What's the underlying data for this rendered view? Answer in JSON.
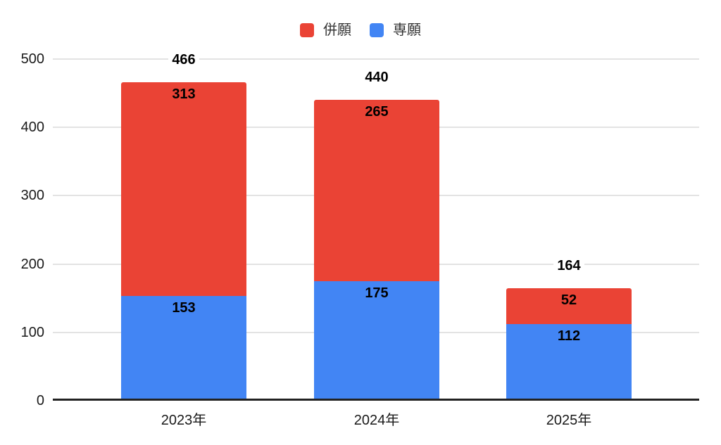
{
  "chart_data": {
    "type": "bar",
    "stacked": true,
    "title": "",
    "xlabel": "",
    "ylabel": "",
    "categories": [
      "2023年",
      "2024年",
      "2025年"
    ],
    "series": [
      {
        "name": "併願",
        "color": "#EA4335",
        "values": [
          313,
          265,
          52
        ]
      },
      {
        "name": "専願",
        "color": "#4285F4",
        "values": [
          153,
          175,
          112
        ]
      }
    ],
    "totals": [
      466,
      440,
      164
    ],
    "stack_bottom_to_top": [
      "専願",
      "併願"
    ],
    "y_axis": {
      "min": 0,
      "max": 500,
      "ticks": [
        0,
        100,
        200,
        300,
        400,
        500
      ]
    },
    "grid": true,
    "legend_position": "top-center"
  },
  "colors": {
    "background": "#ffffff",
    "series_red": "#EA4335",
    "series_blue": "#4285F4",
    "gridline": "#e3e3e3",
    "axis_line": "#222222",
    "value_label_text": "#000000",
    "tick_label_text": "#1a1a1a",
    "legend_text": "#333333"
  }
}
